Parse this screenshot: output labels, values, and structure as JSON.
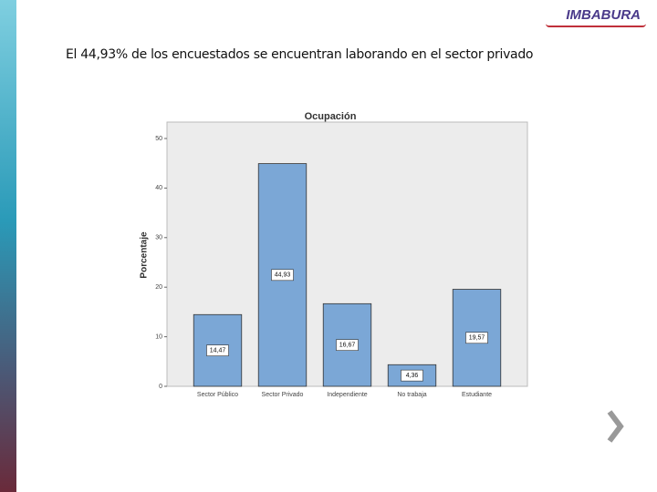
{
  "slide_text": "El 44,93% de los encuestados se encuentran laborando en el sector privado",
  "logo": "IMBABURA",
  "chart_data": {
    "type": "bar",
    "title": "Ocupación",
    "y_label": "Porcentaje",
    "categories": [
      "Sector Público",
      "Sector Privado",
      "Independiente",
      "No trabaja",
      "Estudiante"
    ],
    "values": [
      14.47,
      44.93,
      16.67,
      4.36,
      19.57
    ],
    "value_labels": [
      "14,47",
      "44,93",
      "16,67",
      "4,36",
      "19,57"
    ],
    "color": "#7ba7d6",
    "ylim": [
      0,
      50
    ],
    "yticks": [
      0,
      10,
      20,
      30,
      40,
      50
    ]
  }
}
